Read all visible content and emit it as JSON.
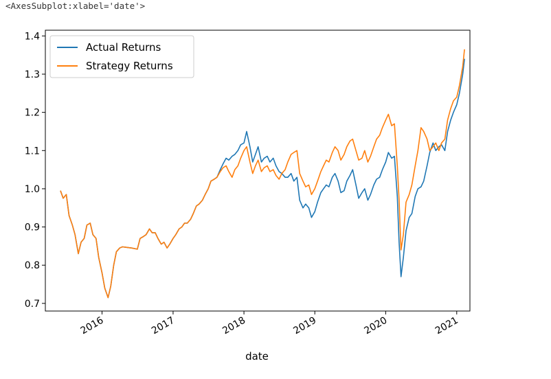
{
  "output_repr": "<AxesSubplot:xlabel='date'>",
  "chart_data": {
    "type": "line",
    "xlabel": "date",
    "ylabel": "",
    "title": "",
    "x_type": "date",
    "xlim": [
      "2015-03-15",
      "2021-03-10"
    ],
    "ylim": [
      0.68,
      1.415
    ],
    "y_ticks": [
      0.7,
      0.8,
      0.9,
      1.0,
      1.1,
      1.2,
      1.3,
      1.4
    ],
    "y_tick_labels": [
      "0.7",
      "0.8",
      "0.9",
      "1.0",
      "1.1",
      "1.2",
      "1.3",
      "1.4"
    ],
    "x_ticks": [
      "2016-01-01",
      "2017-01-01",
      "2018-01-01",
      "2019-01-01",
      "2020-01-01",
      "2021-01-01"
    ],
    "x_tick_labels": [
      "2016",
      "2017",
      "2018",
      "2019",
      "2020",
      "2021"
    ],
    "legend": {
      "placement": "upper-left",
      "entries": [
        "Actual Returns",
        "Strategy Returns"
      ]
    },
    "series": [
      {
        "name": "Actual Returns",
        "color": "#1f77b4",
        "points": [
          [
            "2015-06-01",
            0.995
          ],
          [
            "2015-06-15",
            0.975
          ],
          [
            "2015-07-01",
            0.985
          ],
          [
            "2015-07-15",
            0.93
          ],
          [
            "2015-08-01",
            0.905
          ],
          [
            "2015-08-15",
            0.88
          ],
          [
            "2015-09-01",
            0.83
          ],
          [
            "2015-09-15",
            0.86
          ],
          [
            "2015-10-01",
            0.87
          ],
          [
            "2015-10-15",
            0.905
          ],
          [
            "2015-11-01",
            0.91
          ],
          [
            "2015-11-15",
            0.88
          ],
          [
            "2015-12-01",
            0.87
          ],
          [
            "2015-12-15",
            0.82
          ],
          [
            "2016-01-01",
            0.78
          ],
          [
            "2016-01-15",
            0.74
          ],
          [
            "2016-02-01",
            0.715
          ],
          [
            "2016-02-15",
            0.745
          ],
          [
            "2016-03-01",
            0.8
          ],
          [
            "2016-03-15",
            0.835
          ],
          [
            "2016-04-01",
            0.845
          ],
          [
            "2016-04-15",
            0.848
          ],
          [
            "2016-05-01",
            0.847
          ],
          [
            "2016-06-01",
            0.845
          ],
          [
            "2016-07-01",
            0.842
          ],
          [
            "2016-07-15",
            0.87
          ],
          [
            "2016-08-01",
            0.875
          ],
          [
            "2016-08-15",
            0.88
          ],
          [
            "2016-09-01",
            0.895
          ],
          [
            "2016-09-15",
            0.885
          ],
          [
            "2016-10-01",
            0.885
          ],
          [
            "2016-10-15",
            0.87
          ],
          [
            "2016-11-01",
            0.855
          ],
          [
            "2016-11-15",
            0.86
          ],
          [
            "2016-12-01",
            0.845
          ],
          [
            "2016-12-15",
            0.855
          ],
          [
            "2017-01-01",
            0.87
          ],
          [
            "2017-01-15",
            0.88
          ],
          [
            "2017-02-01",
            0.895
          ],
          [
            "2017-02-15",
            0.9
          ],
          [
            "2017-03-01",
            0.91
          ],
          [
            "2017-03-15",
            0.91
          ],
          [
            "2017-04-01",
            0.92
          ],
          [
            "2017-04-15",
            0.935
          ],
          [
            "2017-05-01",
            0.955
          ],
          [
            "2017-05-15",
            0.96
          ],
          [
            "2017-06-01",
            0.97
          ],
          [
            "2017-06-15",
            0.985
          ],
          [
            "2017-07-01",
            1.0
          ],
          [
            "2017-07-15",
            1.02
          ],
          [
            "2017-08-01",
            1.025
          ],
          [
            "2017-08-15",
            1.03
          ],
          [
            "2017-09-01",
            1.05
          ],
          [
            "2017-09-15",
            1.065
          ],
          [
            "2017-10-01",
            1.08
          ],
          [
            "2017-10-15",
            1.075
          ],
          [
            "2017-11-01",
            1.085
          ],
          [
            "2017-11-15",
            1.09
          ],
          [
            "2017-12-01",
            1.1
          ],
          [
            "2017-12-15",
            1.115
          ],
          [
            "2018-01-01",
            1.12
          ],
          [
            "2018-01-15",
            1.15
          ],
          [
            "2018-02-01",
            1.11
          ],
          [
            "2018-02-15",
            1.07
          ],
          [
            "2018-03-01",
            1.09
          ],
          [
            "2018-03-15",
            1.11
          ],
          [
            "2018-04-01",
            1.07
          ],
          [
            "2018-04-15",
            1.08
          ],
          [
            "2018-05-01",
            1.085
          ],
          [
            "2018-05-15",
            1.07
          ],
          [
            "2018-06-01",
            1.08
          ],
          [
            "2018-06-15",
            1.06
          ],
          [
            "2018-07-01",
            1.045
          ],
          [
            "2018-07-15",
            1.04
          ],
          [
            "2018-08-01",
            1.03
          ],
          [
            "2018-08-15",
            1.03
          ],
          [
            "2018-09-01",
            1.04
          ],
          [
            "2018-09-15",
            1.02
          ],
          [
            "2018-10-01",
            1.03
          ],
          [
            "2018-10-15",
            0.97
          ],
          [
            "2018-11-01",
            0.95
          ],
          [
            "2018-11-15",
            0.96
          ],
          [
            "2018-12-01",
            0.95
          ],
          [
            "2018-12-15",
            0.925
          ],
          [
            "2019-01-01",
            0.94
          ],
          [
            "2019-01-15",
            0.965
          ],
          [
            "2019-02-01",
            0.99
          ],
          [
            "2019-02-15",
            1.0
          ],
          [
            "2019-03-01",
            1.01
          ],
          [
            "2019-03-15",
            1.005
          ],
          [
            "2019-04-01",
            1.03
          ],
          [
            "2019-04-15",
            1.04
          ],
          [
            "2019-05-01",
            1.02
          ],
          [
            "2019-05-15",
            0.99
          ],
          [
            "2019-06-01",
            0.995
          ],
          [
            "2019-06-15",
            1.02
          ],
          [
            "2019-07-01",
            1.035
          ],
          [
            "2019-07-15",
            1.05
          ],
          [
            "2019-08-01",
            1.01
          ],
          [
            "2019-08-15",
            0.975
          ],
          [
            "2019-09-01",
            0.99
          ],
          [
            "2019-09-15",
            1.0
          ],
          [
            "2019-10-01",
            0.97
          ],
          [
            "2019-10-15",
            0.985
          ],
          [
            "2019-11-01",
            1.01
          ],
          [
            "2019-11-15",
            1.025
          ],
          [
            "2019-12-01",
            1.03
          ],
          [
            "2019-12-15",
            1.05
          ],
          [
            "2020-01-01",
            1.07
          ],
          [
            "2020-01-15",
            1.095
          ],
          [
            "2020-02-01",
            1.08
          ],
          [
            "2020-02-15",
            1.085
          ],
          [
            "2020-03-01",
            0.98
          ],
          [
            "2020-03-10",
            0.86
          ],
          [
            "2020-03-20",
            0.77
          ],
          [
            "2020-04-01",
            0.82
          ],
          [
            "2020-04-15",
            0.89
          ],
          [
            "2020-05-01",
            0.925
          ],
          [
            "2020-05-15",
            0.935
          ],
          [
            "2020-06-01",
            0.98
          ],
          [
            "2020-06-15",
            1.0
          ],
          [
            "2020-07-01",
            1.005
          ],
          [
            "2020-07-15",
            1.02
          ],
          [
            "2020-08-01",
            1.06
          ],
          [
            "2020-08-15",
            1.095
          ],
          [
            "2020-09-01",
            1.12
          ],
          [
            "2020-09-15",
            1.1
          ],
          [
            "2020-10-01",
            1.11
          ],
          [
            "2020-10-15",
            1.115
          ],
          [
            "2020-11-01",
            1.1
          ],
          [
            "2020-11-15",
            1.15
          ],
          [
            "2020-12-01",
            1.18
          ],
          [
            "2020-12-15",
            1.2
          ],
          [
            "2021-01-01",
            1.22
          ],
          [
            "2021-01-15",
            1.25
          ],
          [
            "2021-02-01",
            1.3
          ],
          [
            "2021-02-10",
            1.34
          ]
        ]
      },
      {
        "name": "Strategy Returns",
        "color": "#ff7f0e",
        "points": [
          [
            "2015-06-01",
            0.995
          ],
          [
            "2015-06-15",
            0.975
          ],
          [
            "2015-07-01",
            0.985
          ],
          [
            "2015-07-15",
            0.93
          ],
          [
            "2015-08-01",
            0.905
          ],
          [
            "2015-08-15",
            0.88
          ],
          [
            "2015-09-01",
            0.83
          ],
          [
            "2015-09-15",
            0.86
          ],
          [
            "2015-10-01",
            0.87
          ],
          [
            "2015-10-15",
            0.905
          ],
          [
            "2015-11-01",
            0.91
          ],
          [
            "2015-11-15",
            0.88
          ],
          [
            "2015-12-01",
            0.87
          ],
          [
            "2015-12-15",
            0.82
          ],
          [
            "2016-01-01",
            0.78
          ],
          [
            "2016-01-15",
            0.74
          ],
          [
            "2016-02-01",
            0.715
          ],
          [
            "2016-02-15",
            0.745
          ],
          [
            "2016-03-01",
            0.8
          ],
          [
            "2016-03-15",
            0.835
          ],
          [
            "2016-04-01",
            0.845
          ],
          [
            "2016-04-15",
            0.848
          ],
          [
            "2016-05-01",
            0.847
          ],
          [
            "2016-06-01",
            0.845
          ],
          [
            "2016-07-01",
            0.842
          ],
          [
            "2016-07-15",
            0.87
          ],
          [
            "2016-08-01",
            0.875
          ],
          [
            "2016-08-15",
            0.88
          ],
          [
            "2016-09-01",
            0.895
          ],
          [
            "2016-09-15",
            0.885
          ],
          [
            "2016-10-01",
            0.885
          ],
          [
            "2016-10-15",
            0.87
          ],
          [
            "2016-11-01",
            0.855
          ],
          [
            "2016-11-15",
            0.86
          ],
          [
            "2016-12-01",
            0.845
          ],
          [
            "2016-12-15",
            0.855
          ],
          [
            "2017-01-01",
            0.87
          ],
          [
            "2017-01-15",
            0.88
          ],
          [
            "2017-02-01",
            0.895
          ],
          [
            "2017-02-15",
            0.9
          ],
          [
            "2017-03-01",
            0.91
          ],
          [
            "2017-03-15",
            0.91
          ],
          [
            "2017-04-01",
            0.92
          ],
          [
            "2017-04-15",
            0.935
          ],
          [
            "2017-05-01",
            0.955
          ],
          [
            "2017-05-15",
            0.96
          ],
          [
            "2017-06-01",
            0.97
          ],
          [
            "2017-06-15",
            0.985
          ],
          [
            "2017-07-01",
            1.0
          ],
          [
            "2017-07-15",
            1.02
          ],
          [
            "2017-08-01",
            1.025
          ],
          [
            "2017-08-15",
            1.03
          ],
          [
            "2017-09-01",
            1.045
          ],
          [
            "2017-09-15",
            1.055
          ],
          [
            "2017-10-01",
            1.06
          ],
          [
            "2017-10-15",
            1.045
          ],
          [
            "2017-11-01",
            1.03
          ],
          [
            "2017-11-15",
            1.05
          ],
          [
            "2017-12-01",
            1.06
          ],
          [
            "2017-12-15",
            1.08
          ],
          [
            "2018-01-01",
            1.1
          ],
          [
            "2018-01-15",
            1.11
          ],
          [
            "2018-02-01",
            1.07
          ],
          [
            "2018-02-15",
            1.04
          ],
          [
            "2018-03-01",
            1.06
          ],
          [
            "2018-03-15",
            1.075
          ],
          [
            "2018-04-01",
            1.045
          ],
          [
            "2018-04-15",
            1.055
          ],
          [
            "2018-05-01",
            1.06
          ],
          [
            "2018-05-15",
            1.045
          ],
          [
            "2018-06-01",
            1.05
          ],
          [
            "2018-06-15",
            1.035
          ],
          [
            "2018-07-01",
            1.025
          ],
          [
            "2018-07-15",
            1.04
          ],
          [
            "2018-08-01",
            1.05
          ],
          [
            "2018-08-15",
            1.07
          ],
          [
            "2018-09-01",
            1.09
          ],
          [
            "2018-09-15",
            1.095
          ],
          [
            "2018-10-01",
            1.1
          ],
          [
            "2018-10-15",
            1.04
          ],
          [
            "2018-11-01",
            1.02
          ],
          [
            "2018-11-15",
            1.005
          ],
          [
            "2018-12-01",
            1.01
          ],
          [
            "2018-12-15",
            0.985
          ],
          [
            "2019-01-01",
            1.0
          ],
          [
            "2019-01-15",
            1.02
          ],
          [
            "2019-02-01",
            1.045
          ],
          [
            "2019-02-15",
            1.06
          ],
          [
            "2019-03-01",
            1.075
          ],
          [
            "2019-03-15",
            1.07
          ],
          [
            "2019-04-01",
            1.095
          ],
          [
            "2019-04-15",
            1.11
          ],
          [
            "2019-05-01",
            1.1
          ],
          [
            "2019-05-15",
            1.075
          ],
          [
            "2019-06-01",
            1.09
          ],
          [
            "2019-06-15",
            1.11
          ],
          [
            "2019-07-01",
            1.125
          ],
          [
            "2019-07-15",
            1.13
          ],
          [
            "2019-08-01",
            1.1
          ],
          [
            "2019-08-15",
            1.075
          ],
          [
            "2019-09-01",
            1.08
          ],
          [
            "2019-09-15",
            1.1
          ],
          [
            "2019-10-01",
            1.07
          ],
          [
            "2019-10-15",
            1.085
          ],
          [
            "2019-11-01",
            1.11
          ],
          [
            "2019-11-15",
            1.13
          ],
          [
            "2019-12-01",
            1.14
          ],
          [
            "2019-12-15",
            1.16
          ],
          [
            "2020-01-01",
            1.18
          ],
          [
            "2020-01-15",
            1.195
          ],
          [
            "2020-02-01",
            1.165
          ],
          [
            "2020-02-15",
            1.17
          ],
          [
            "2020-03-01",
            1.06
          ],
          [
            "2020-03-10",
            0.97
          ],
          [
            "2020-03-20",
            0.84
          ],
          [
            "2020-04-01",
            0.88
          ],
          [
            "2020-04-15",
            0.965
          ],
          [
            "2020-05-01",
            0.985
          ],
          [
            "2020-05-15",
            1.01
          ],
          [
            "2020-06-01",
            1.06
          ],
          [
            "2020-06-15",
            1.1
          ],
          [
            "2020-07-01",
            1.16
          ],
          [
            "2020-07-15",
            1.15
          ],
          [
            "2020-08-01",
            1.13
          ],
          [
            "2020-08-15",
            1.1
          ],
          [
            "2020-09-01",
            1.11
          ],
          [
            "2020-09-15",
            1.12
          ],
          [
            "2020-10-01",
            1.1
          ],
          [
            "2020-10-15",
            1.12
          ],
          [
            "2020-11-01",
            1.13
          ],
          [
            "2020-11-15",
            1.18
          ],
          [
            "2020-12-01",
            1.21
          ],
          [
            "2020-12-15",
            1.23
          ],
          [
            "2021-01-01",
            1.24
          ],
          [
            "2021-01-15",
            1.27
          ],
          [
            "2021-02-01",
            1.32
          ],
          [
            "2021-02-10",
            1.365
          ]
        ]
      }
    ]
  }
}
